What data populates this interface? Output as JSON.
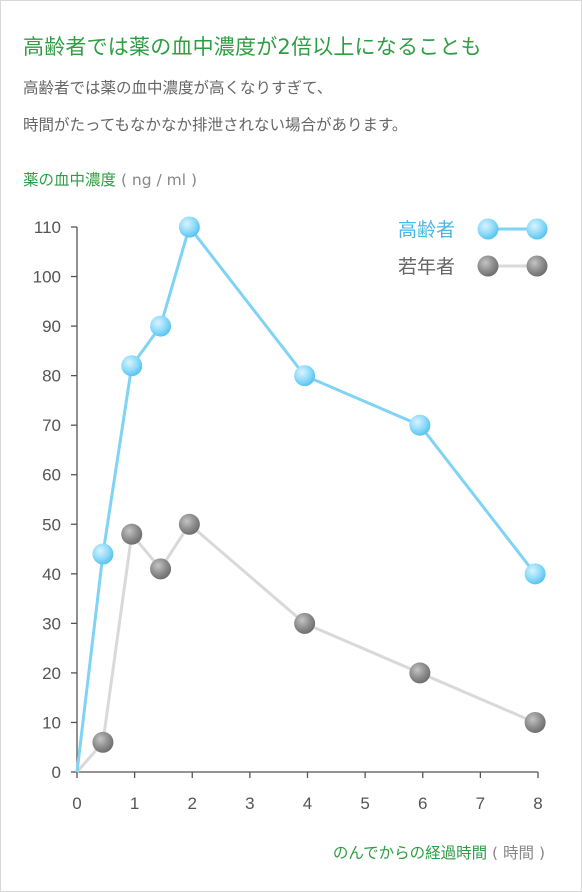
{
  "title": "高齢者では薬の血中濃度が2倍以上になることも",
  "subtitle_lines": [
    "高齢者では薬の血中濃度が高くなりすぎて、",
    "時間がたってもなかなか排泄されない場合があります。"
  ],
  "colors": {
    "accent": "#2e9e44",
    "elderly": "#7fd3f4",
    "young": "#d9d9d9"
  },
  "chart_data": {
    "type": "line",
    "ylabel": "薬の血中濃度",
    "yunit": "( ng / ml )",
    "xlabel": "のんでからの経過時間",
    "xunit": "( 時間 )",
    "xlim": [
      0,
      8
    ],
    "ylim": [
      0,
      110
    ],
    "xticks": [
      0,
      1,
      2,
      3,
      4,
      5,
      6,
      7,
      8
    ],
    "yticks": [
      0,
      10,
      20,
      30,
      40,
      50,
      60,
      70,
      80,
      90,
      100,
      110
    ],
    "legend_position": "top-right",
    "series": [
      {
        "name": "高齢者",
        "color": "#7fd3f4",
        "points": [
          [
            0,
            0
          ],
          [
            0.45,
            44
          ],
          [
            0.95,
            82
          ],
          [
            1.45,
            90
          ],
          [
            1.95,
            110
          ],
          [
            3.95,
            80
          ],
          [
            5.95,
            70
          ],
          [
            7.95,
            40
          ]
        ]
      },
      {
        "name": "若年者",
        "color": "#d9d9d9",
        "points": [
          [
            0,
            0
          ],
          [
            0.45,
            6
          ],
          [
            0.95,
            48
          ],
          [
            1.45,
            41
          ],
          [
            1.95,
            50
          ],
          [
            3.95,
            30
          ],
          [
            5.95,
            20
          ],
          [
            7.95,
            10
          ]
        ]
      }
    ]
  }
}
